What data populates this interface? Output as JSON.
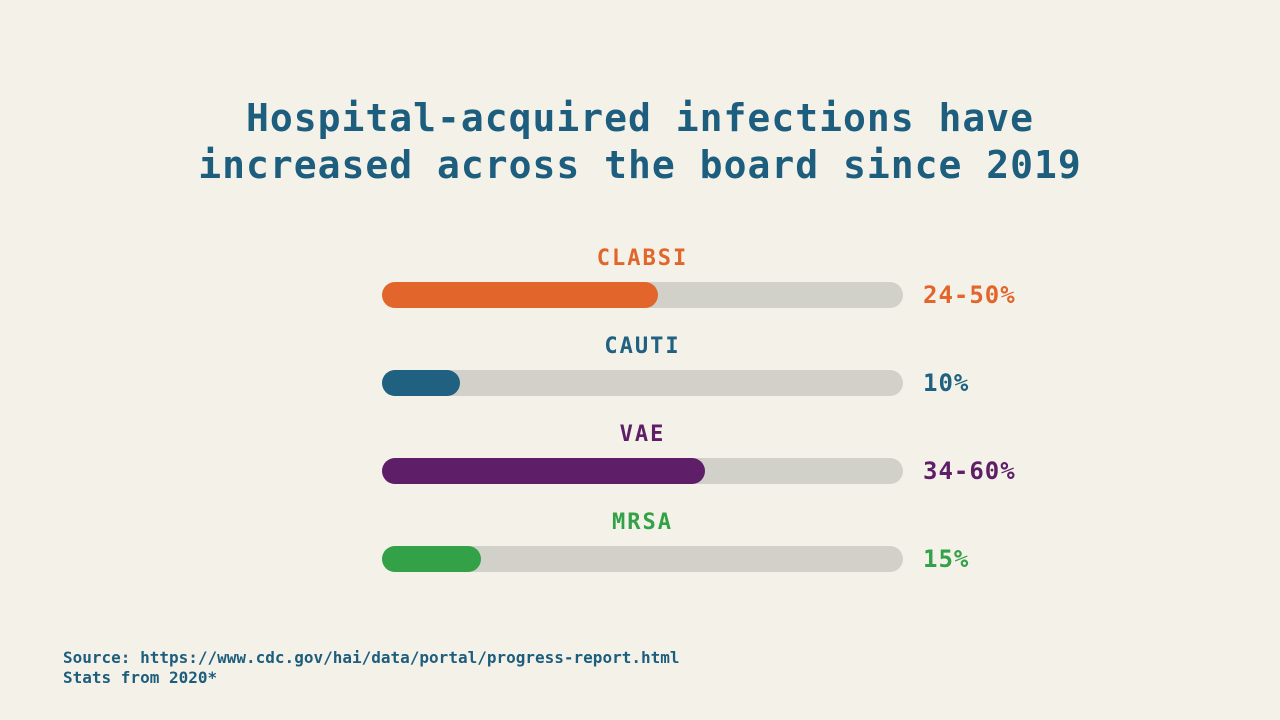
{
  "slide": {
    "background_color": "#f4f2e8",
    "title": {
      "line1": "Hospital-acquired infections have",
      "line2": "increased across the board since 2019",
      "full_text": "Hospital-acquired infections have increased across the board since 2019",
      "color": "#1d5d7e"
    },
    "source": {
      "line1": "Source: https://www.cdc.gov/hai/data/portal/progress-report.html",
      "line2": "Stats from 2020*",
      "color": "#1d5d7e"
    }
  },
  "chart_data": {
    "type": "bar",
    "orientation": "horizontal",
    "title": "Hospital-acquired infections have increased across the board since 2019",
    "categories": [
      "CLABSI",
      "CAUTI",
      "VAE",
      "MRSA"
    ],
    "value_labels": [
      "24-50%",
      "10%",
      "34-60%",
      "15%"
    ],
    "value_ranges_percent": [
      [
        24,
        50
      ],
      [
        10,
        10
      ],
      [
        34,
        60
      ],
      [
        15,
        15
      ]
    ],
    "track_color": "#d1d1ca",
    "grid": false,
    "legend": false,
    "bars": [
      {
        "label": "CLABSI",
        "value_label": "24-50%",
        "range_percent": [
          24,
          50
        ],
        "fill_percent_of_track": 53,
        "color": "#e2662b"
      },
      {
        "label": "CAUTI",
        "value_label": "10%",
        "range_percent": [
          10,
          10
        ],
        "fill_percent_of_track": 15,
        "color": "#206080"
      },
      {
        "label": "VAE",
        "value_label": "34-60%",
        "range_percent": [
          34,
          60
        ],
        "fill_percent_of_track": 62,
        "color": "#5e1f68"
      },
      {
        "label": "MRSA",
        "value_label": "15%",
        "range_percent": [
          15,
          15
        ],
        "fill_percent_of_track": 19,
        "color": "#32a147"
      }
    ]
  }
}
